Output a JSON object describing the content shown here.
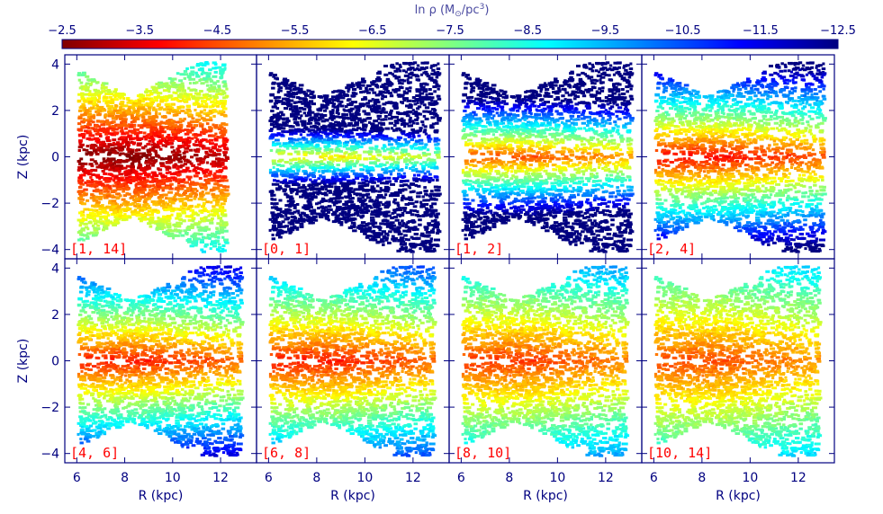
{
  "chart_data": {
    "type": "scatter",
    "description_title": "ln ρ (M⊙/pc³)",
    "colorbar": {
      "label": "ln ρ (M",
      "label_sun": "⊙",
      "label_tail": "/pc",
      "label_exp": "3",
      "label_close": ")",
      "ticks": [
        "−2.5",
        "−3.5",
        "−4.5",
        "−5.5",
        "−6.5",
        "−7.5",
        "−8.5",
        "−9.5",
        "−10.5",
        "−11.5",
        "−12.5"
      ],
      "range": [
        -2.5,
        -12.5
      ],
      "colormap": [
        "#800000",
        "#ff0000",
        "#ff8000",
        "#ffff00",
        "#80ff80",
        "#00ffff",
        "#0080ff",
        "#0000ff",
        "#000080"
      ]
    },
    "axes": {
      "xlabel": "R (kpc)",
      "ylabel": "Z (kpc)",
      "xlim": [
        5.5,
        13.5
      ],
      "ylim": [
        -4.4,
        4.4
      ],
      "xticks": [
        "6",
        "8",
        "10",
        "12"
      ],
      "yticks": [
        "4",
        "2",
        "0",
        "−2",
        "−4"
      ],
      "xtick_values": [
        6,
        8,
        10,
        12
      ],
      "ytick_values": [
        4,
        2,
        0,
        -2,
        -4
      ]
    },
    "panels": [
      {
        "label": "[1, 14]",
        "peak": -2.5,
        "scale": 1.3,
        "width": 0.22,
        "rmax": 12.2,
        "decay": 0.12,
        "noise": 0.5
      },
      {
        "label": "[0, 1]",
        "peak": -6.0,
        "scale": 0.35,
        "width": 0.22,
        "rmax": 13.0,
        "decay": 0.15,
        "noise": 0.5
      },
      {
        "label": "[1, 2]",
        "peak": -4.5,
        "scale": 0.6,
        "width": 0.22,
        "rmax": 13.0,
        "decay": 0.15,
        "noise": 0.5
      },
      {
        "label": "[2, 4]",
        "peak": -3.8,
        "scale": 0.9,
        "width": 0.22,
        "rmax": 13.0,
        "decay": 0.15,
        "noise": 0.5
      },
      {
        "label": "[4, 6]",
        "peak": -4.0,
        "scale": 1.1,
        "width": 0.22,
        "rmax": 12.8,
        "decay": 0.15,
        "noise": 0.5
      },
      {
        "label": "[6, 8]",
        "peak": -4.0,
        "scale": 1.3,
        "width": 0.22,
        "rmax": 12.8,
        "decay": 0.15,
        "noise": 0.5
      },
      {
        "label": "[8, 10]",
        "peak": -4.3,
        "scale": 1.6,
        "width": 0.22,
        "rmax": 12.8,
        "decay": 0.15,
        "noise": 0.5
      },
      {
        "label": "[10, 14]",
        "peak": -4.5,
        "scale": 1.9,
        "width": 0.22,
        "rmax": 12.8,
        "decay": 0.15,
        "noise": 0.5
      }
    ]
  }
}
